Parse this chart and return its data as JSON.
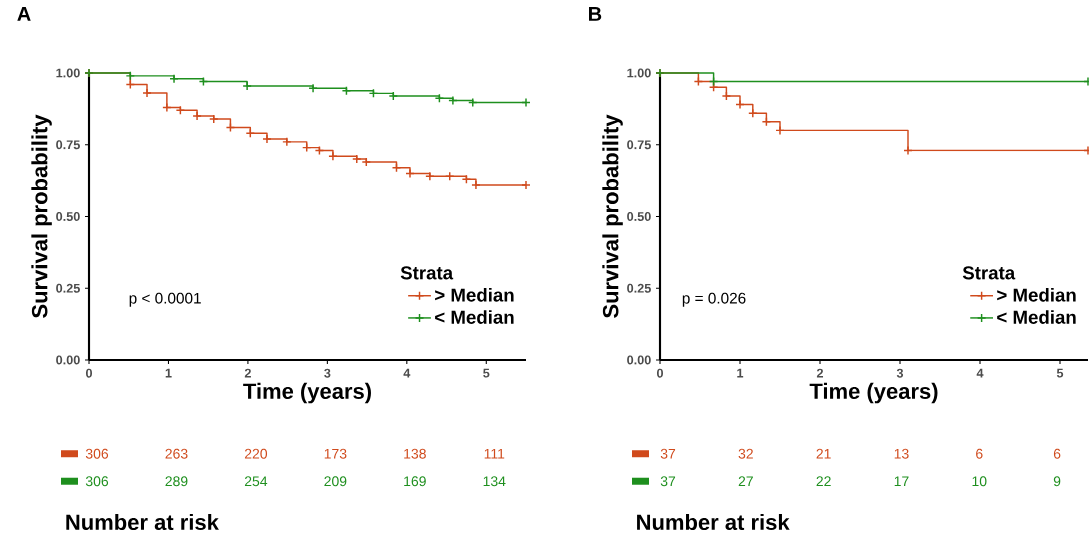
{
  "chart_data": [
    {
      "type": "step",
      "title": "A",
      "xlabel": "Time (years)",
      "ylabel": "Survival probability",
      "xlim": [
        0,
        5.5
      ],
      "ylim": [
        0,
        1
      ],
      "xticks": [
        0,
        1,
        2,
        3,
        4,
        5
      ],
      "yticks": [
        {
          "value": 0,
          "label": "0.00"
        },
        {
          "value": 0.25,
          "label": "0.25"
        },
        {
          "value": 0.5,
          "label": "0.50"
        },
        {
          "value": 0.75,
          "label": "0.75"
        },
        {
          "value": 1,
          "label": "1.00"
        }
      ],
      "marker": "cross",
      "legend": "right",
      "legend_title": "Strata",
      "annotations": [
        "p < 0.0001"
      ],
      "series": [
        {
          "name": "> Median",
          "color": "#d04a1c",
          "x": [
            0,
            0.52,
            0.73,
            0.98,
            1.15,
            1.36,
            1.57,
            1.78,
            2.03,
            2.24,
            2.49,
            2.74,
            2.9,
            3.07,
            3.37,
            3.49,
            3.87,
            4.04,
            4.29,
            4.54,
            4.75,
            4.87,
            5.5
          ],
          "values": [
            1,
            0.96,
            0.93,
            0.88,
            0.87,
            0.85,
            0.84,
            0.81,
            0.79,
            0.77,
            0.76,
            0.74,
            0.73,
            0.71,
            0.7,
            0.69,
            0.67,
            0.65,
            0.64,
            0.64,
            0.63,
            0.61,
            0.61
          ]
        },
        {
          "name": "< Median",
          "color": "#1e8f1e",
          "x": [
            0,
            0.52,
            1.07,
            1.44,
            1.99,
            2.82,
            3.24,
            3.58,
            3.83,
            4.41,
            4.58,
            4.83,
            5.5
          ],
          "values": [
            1,
            0.99,
            0.98,
            0.97,
            0.955,
            0.947,
            0.938,
            0.929,
            0.92,
            0.912,
            0.904,
            0.897,
            0.897
          ]
        }
      ]
    },
    {
      "type": "step",
      "title": "B",
      "xlabel": "Time (years)",
      "ylabel": "Survival probability",
      "xlim": [
        0,
        5.35
      ],
      "ylim": [
        0,
        1
      ],
      "xticks": [
        0,
        1,
        2,
        3,
        4,
        5
      ],
      "yticks": [
        {
          "value": 0,
          "label": "0.00"
        },
        {
          "value": 0.25,
          "label": "0.25"
        },
        {
          "value": 0.5,
          "label": "0.50"
        },
        {
          "value": 0.75,
          "label": "0.75"
        },
        {
          "value": 1,
          "label": "1.00"
        }
      ],
      "marker": "cross",
      "legend": "right",
      "legend_title": "Strata",
      "annotations": [
        "p = 0.026"
      ],
      "series": [
        {
          "name": "> Median",
          "color": "#d04a1c",
          "x": [
            0,
            0.48,
            0.67,
            0.83,
            1.0,
            1.16,
            1.33,
            1.5,
            3.1,
            5.35
          ],
          "values": [
            1,
            0.97,
            0.95,
            0.92,
            0.89,
            0.86,
            0.83,
            0.8,
            0.73,
            0.73
          ]
        },
        {
          "name": "< Median",
          "color": "#1e8f1e",
          "x": [
            0,
            0.67,
            5.35
          ],
          "values": [
            1,
            0.97,
            0.97
          ]
        }
      ]
    },
    {
      "type": "other",
      "title": "Number at risk",
      "annotations": [
        "306",
        "263",
        "220",
        "173",
        "138",
        "111",
        "306",
        "289",
        "254",
        "209",
        "169",
        "134"
      ]
    },
    {
      "type": "other",
      "title": "Number at risk",
      "annotations": [
        "37",
        "32",
        "21",
        "13",
        "6",
        "6",
        "37",
        "27",
        "22",
        "17",
        "10",
        "9"
      ]
    }
  ]
}
